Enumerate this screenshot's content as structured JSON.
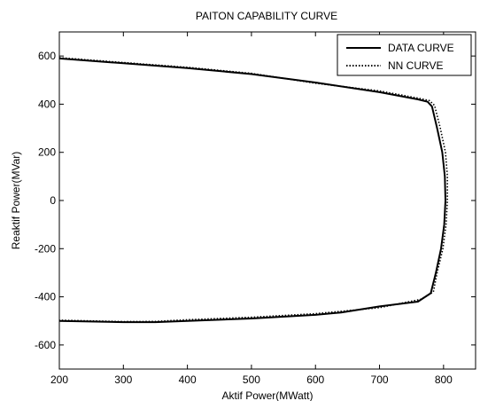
{
  "chart_data": {
    "type": "line",
    "title": "PAITON CAPABILITY CURVE",
    "xlabel": "Aktif Power(MWatt)",
    "ylabel": "Reaktif Power(MVar)",
    "xlim": [
      200,
      850
    ],
    "ylim": [
      -700,
      700
    ],
    "xticks": [
      200,
      300,
      400,
      500,
      600,
      700,
      800
    ],
    "yticks": [
      -600,
      -400,
      -200,
      0,
      200,
      400,
      600
    ],
    "grid": false,
    "legend_position": "top-right",
    "series": [
      {
        "name": "DATA CURVE",
        "style": "solid",
        "color": "#000000",
        "points": [
          [
            200,
            590
          ],
          [
            300,
            570
          ],
          [
            400,
            550
          ],
          [
            500,
            525
          ],
          [
            600,
            490
          ],
          [
            700,
            450
          ],
          [
            760,
            420
          ],
          [
            775,
            410
          ],
          [
            782,
            390
          ],
          [
            790,
            300
          ],
          [
            798,
            200
          ],
          [
            802,
            100
          ],
          [
            803,
            0
          ],
          [
            801,
            -100
          ],
          [
            796,
            -200
          ],
          [
            788,
            -300
          ],
          [
            780,
            -385
          ],
          [
            760,
            -420
          ],
          [
            700,
            -440
          ],
          [
            640,
            -465
          ],
          [
            600,
            -475
          ],
          [
            500,
            -490
          ],
          [
            400,
            -500
          ],
          [
            350,
            -505
          ],
          [
            300,
            -505
          ],
          [
            200,
            -500
          ]
        ]
      },
      {
        "name": "NN CURVE",
        "style": "dotted",
        "color": "#000000",
        "points": [
          [
            200,
            593
          ],
          [
            300,
            573
          ],
          [
            400,
            553
          ],
          [
            500,
            528
          ],
          [
            600,
            487
          ],
          [
            700,
            455
          ],
          [
            760,
            425
          ],
          [
            778,
            415
          ],
          [
            786,
            395
          ],
          [
            795,
            300
          ],
          [
            803,
            200
          ],
          [
            806,
            100
          ],
          [
            806,
            0
          ],
          [
            804,
            -100
          ],
          [
            799,
            -200
          ],
          [
            790,
            -300
          ],
          [
            784,
            -380
          ],
          [
            765,
            -410
          ],
          [
            700,
            -445
          ],
          [
            640,
            -460
          ],
          [
            600,
            -470
          ],
          [
            500,
            -485
          ],
          [
            400,
            -495
          ],
          [
            350,
            -502
          ],
          [
            300,
            -503
          ],
          [
            200,
            -497
          ]
        ]
      }
    ]
  }
}
